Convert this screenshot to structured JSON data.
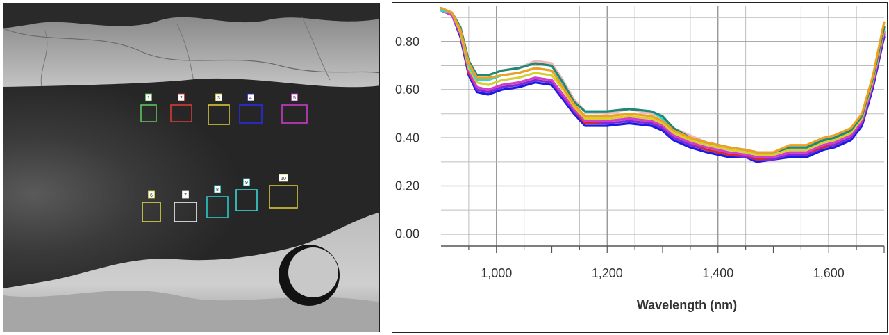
{
  "image": {
    "rois": [
      {
        "label": "1",
        "color": "#5ec25e"
      },
      {
        "label": "2",
        "color": "#d43a3a"
      },
      {
        "label": "3",
        "color": "#d8c43a"
      },
      {
        "label": "4",
        "color": "#2c2ce0"
      },
      {
        "label": "5",
        "color": "#c63cc6"
      },
      {
        "label": "6",
        "color": "#d8d84a"
      },
      {
        "label": "7",
        "color": "#f0f0f0"
      },
      {
        "label": "8",
        "color": "#2cc8c8"
      },
      {
        "label": "9",
        "color": "#3cd4d4"
      },
      {
        "label": "10",
        "color": "#d8c43a"
      }
    ]
  },
  "chart_data": {
    "type": "line",
    "title": "",
    "xlabel": "Wavelength (nm)",
    "ylabel": "",
    "xlim": [
      900,
      1700
    ],
    "ylim": [
      -0.05,
      0.95
    ],
    "xticks": [
      1000,
      1200,
      1400,
      1600
    ],
    "xtick_labels": [
      "1,000",
      "1,200",
      "1,400",
      "1,600"
    ],
    "yticks": [
      0.0,
      0.2,
      0.4,
      0.6,
      0.8
    ],
    "ytick_labels": [
      "0.00",
      "0.20",
      "0.40",
      "0.60",
      "0.80"
    ],
    "x": [
      900,
      920,
      935,
      950,
      965,
      985,
      1010,
      1040,
      1070,
      1100,
      1120,
      1140,
      1160,
      1200,
      1240,
      1280,
      1300,
      1320,
      1350,
      1380,
      1420,
      1450,
      1470,
      1500,
      1530,
      1560,
      1590,
      1610,
      1640,
      1660,
      1680,
      1700
    ],
    "series": [
      {
        "color": "#1a1ae6",
        "values": [
          0.93,
          0.91,
          0.82,
          0.66,
          0.59,
          0.58,
          0.6,
          0.61,
          0.63,
          0.62,
          0.56,
          0.5,
          0.45,
          0.45,
          0.46,
          0.45,
          0.43,
          0.39,
          0.36,
          0.34,
          0.32,
          0.32,
          0.3,
          0.31,
          0.32,
          0.32,
          0.35,
          0.36,
          0.39,
          0.45,
          0.61,
          0.82
        ]
      },
      {
        "color": "#7a2bd6",
        "values": [
          0.93,
          0.91,
          0.83,
          0.67,
          0.6,
          0.59,
          0.61,
          0.62,
          0.64,
          0.63,
          0.57,
          0.51,
          0.46,
          0.46,
          0.47,
          0.46,
          0.44,
          0.4,
          0.37,
          0.35,
          0.33,
          0.32,
          0.31,
          0.31,
          0.33,
          0.33,
          0.36,
          0.37,
          0.4,
          0.46,
          0.62,
          0.83
        ]
      },
      {
        "color": "#d42a2a",
        "values": [
          0.93,
          0.91,
          0.83,
          0.67,
          0.61,
          0.6,
          0.62,
          0.63,
          0.65,
          0.64,
          0.58,
          0.52,
          0.46,
          0.47,
          0.48,
          0.47,
          0.45,
          0.41,
          0.38,
          0.35,
          0.33,
          0.33,
          0.31,
          0.32,
          0.34,
          0.34,
          0.36,
          0.38,
          0.41,
          0.47,
          0.63,
          0.84
        ]
      },
      {
        "color": "#d23cd2",
        "values": [
          0.93,
          0.91,
          0.83,
          0.68,
          0.61,
          0.6,
          0.62,
          0.63,
          0.65,
          0.64,
          0.58,
          0.52,
          0.47,
          0.47,
          0.48,
          0.47,
          0.45,
          0.41,
          0.38,
          0.36,
          0.34,
          0.33,
          0.32,
          0.32,
          0.34,
          0.34,
          0.37,
          0.38,
          0.41,
          0.47,
          0.63,
          0.84
        ]
      },
      {
        "color": "#d6cf2e",
        "values": [
          0.93,
          0.92,
          0.84,
          0.69,
          0.63,
          0.62,
          0.64,
          0.65,
          0.67,
          0.66,
          0.6,
          0.53,
          0.48,
          0.48,
          0.49,
          0.48,
          0.46,
          0.42,
          0.39,
          0.37,
          0.35,
          0.34,
          0.33,
          0.33,
          0.35,
          0.35,
          0.38,
          0.39,
          0.42,
          0.48,
          0.64,
          0.85
        ]
      },
      {
        "color": "#f4b8b8",
        "values": [
          0.94,
          0.92,
          0.86,
          0.72,
          0.66,
          0.66,
          0.68,
          0.69,
          0.72,
          0.71,
          0.64,
          0.56,
          0.51,
          0.5,
          0.52,
          0.5,
          0.48,
          0.44,
          0.41,
          0.38,
          0.36,
          0.35,
          0.34,
          0.34,
          0.36,
          0.36,
          0.39,
          0.4,
          0.43,
          0.49,
          0.65,
          0.86
        ]
      },
      {
        "color": "#2ed8d8",
        "values": [
          0.93,
          0.92,
          0.85,
          0.7,
          0.64,
          0.64,
          0.66,
          0.67,
          0.69,
          0.68,
          0.62,
          0.55,
          0.51,
          0.51,
          0.52,
          0.51,
          0.48,
          0.44,
          0.4,
          0.38,
          0.36,
          0.35,
          0.34,
          0.34,
          0.36,
          0.36,
          0.39,
          0.4,
          0.43,
          0.49,
          0.65,
          0.86
        ]
      },
      {
        "color": "#208878",
        "values": [
          0.94,
          0.92,
          0.86,
          0.72,
          0.66,
          0.66,
          0.68,
          0.69,
          0.71,
          0.7,
          0.63,
          0.55,
          0.51,
          0.51,
          0.52,
          0.51,
          0.49,
          0.44,
          0.4,
          0.38,
          0.36,
          0.35,
          0.34,
          0.34,
          0.36,
          0.36,
          0.39,
          0.4,
          0.43,
          0.49,
          0.65,
          0.86
        ]
      },
      {
        "color": "#f0a020",
        "values": [
          0.94,
          0.92,
          0.85,
          0.71,
          0.65,
          0.65,
          0.66,
          0.67,
          0.69,
          0.68,
          0.61,
          0.54,
          0.49,
          0.49,
          0.5,
          0.49,
          0.47,
          0.43,
          0.4,
          0.38,
          0.36,
          0.35,
          0.34,
          0.34,
          0.37,
          0.37,
          0.4,
          0.41,
          0.44,
          0.5,
          0.66,
          0.88
        ]
      }
    ]
  }
}
